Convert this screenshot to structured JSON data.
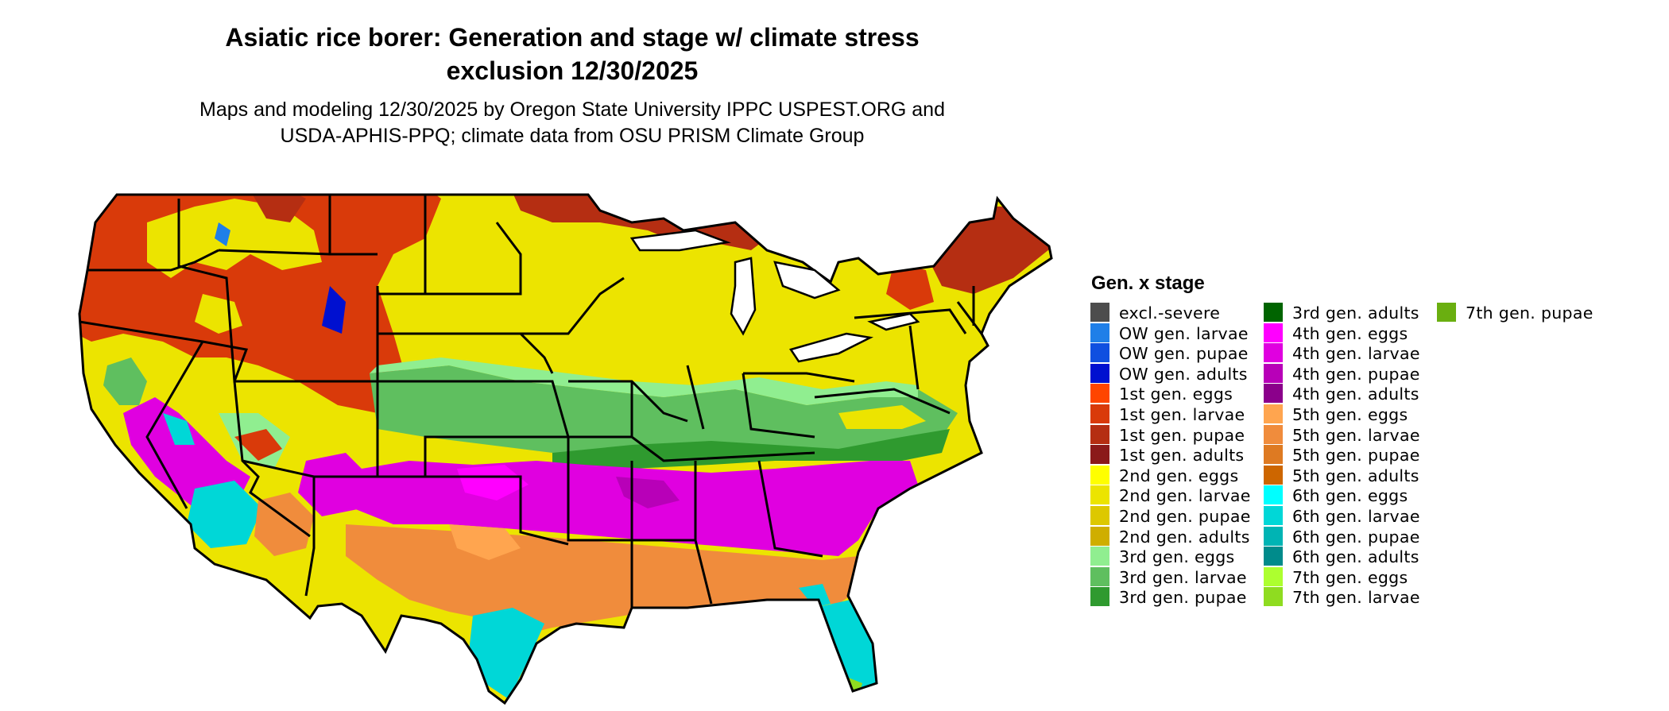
{
  "title": "Asiatic rice borer: Generation and stage w/ climate stress exclusion 12/30/2025",
  "title_line1": "Asiatic rice borer: Generation and stage w/ climate stress",
  "title_line2": "exclusion 12/30/2025",
  "subtitle_line1": "Maps and modeling 12/30/2025 by Oregon State University IPPC USPEST.ORG and",
  "subtitle_line2": "USDA-APHIS-PPQ; climate data from OSU PRISM Climate Group",
  "legend": {
    "title": "Gen. x stage",
    "items": [
      {
        "label": "excl.-severe",
        "color": "#4d4d4d"
      },
      {
        "label": "OW gen. larvae",
        "color": "#1f7fe8"
      },
      {
        "label": "OW gen. pupae",
        "color": "#0f4fe0"
      },
      {
        "label": "OW gen. adults",
        "color": "#0010d0"
      },
      {
        "label": "1st gen. eggs",
        "color": "#ff4500"
      },
      {
        "label": "1st gen. larvae",
        "color": "#d93a0a"
      },
      {
        "label": "1st gen. pupae",
        "color": "#b52e12"
      },
      {
        "label": "1st gen. adults",
        "color": "#8b1a1a"
      },
      {
        "label": "2nd gen. eggs",
        "color": "#ffff00"
      },
      {
        "label": "2nd gen. larvae",
        "color": "#ece400"
      },
      {
        "label": "2nd gen. pupae",
        "color": "#ddc800"
      },
      {
        "label": "2nd gen. adults",
        "color": "#cfae00"
      },
      {
        "label": "3rd gen. eggs",
        "color": "#90ee90"
      },
      {
        "label": "3rd gen. larvae",
        "color": "#5fbf5f"
      },
      {
        "label": "3rd gen. pupae",
        "color": "#2f9a2f"
      },
      {
        "label": "3rd gen. adults",
        "color": "#006400"
      },
      {
        "label": "4th gen. eggs",
        "color": "#ff00ff"
      },
      {
        "label": "4th gen. larvae",
        "color": "#e000e0"
      },
      {
        "label": "4th gen. pupae",
        "color": "#b800b8"
      },
      {
        "label": "4th gen. adults",
        "color": "#8b008b"
      },
      {
        "label": "5th gen. eggs",
        "color": "#ffa54f"
      },
      {
        "label": "5th gen. larvae",
        "color": "#f08c3c"
      },
      {
        "label": "5th gen. pupae",
        "color": "#de7a22"
      },
      {
        "label": "5th gen. adults",
        "color": "#cd6600"
      },
      {
        "label": "6th gen. eggs",
        "color": "#00ffff"
      },
      {
        "label": "6th gen. larvae",
        "color": "#00d7d7"
      },
      {
        "label": "6th gen. pupae",
        "color": "#00b4b4"
      },
      {
        "label": "6th gen. adults",
        "color": "#008b8b"
      },
      {
        "label": "7th gen. eggs",
        "color": "#adff2f"
      },
      {
        "label": "7th gen. larvae",
        "color": "#8fdc20"
      },
      {
        "label": "7th gen. pupae",
        "color": "#6aaf10"
      }
    ]
  }
}
